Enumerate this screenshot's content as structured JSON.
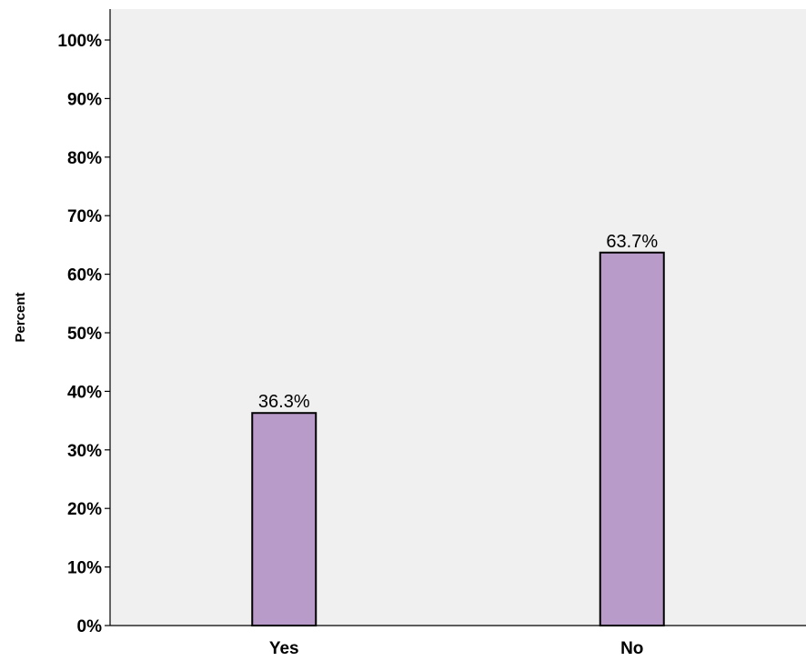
{
  "chart_data": {
    "type": "bar",
    "categories": [
      "Yes",
      "No"
    ],
    "values": [
      36.3,
      63.7
    ],
    "value_labels": [
      "36.3%",
      "63.7%"
    ],
    "xlabel": "",
    "ylabel": "Percent",
    "ylim": [
      0,
      100
    ],
    "y_ticks": [
      0,
      10,
      20,
      30,
      40,
      50,
      60,
      70,
      80,
      90,
      100
    ],
    "y_tick_labels": [
      "0%",
      "10%",
      "20%",
      "30%",
      "40%",
      "50%",
      "60%",
      "70%",
      "80%",
      "90%",
      "100%"
    ],
    "grid": false,
    "legend": "none",
    "colors": {
      "plot_background": "#f0f0f0",
      "bar_fill": "#b99bc9",
      "bar_stroke": "#000000"
    }
  }
}
